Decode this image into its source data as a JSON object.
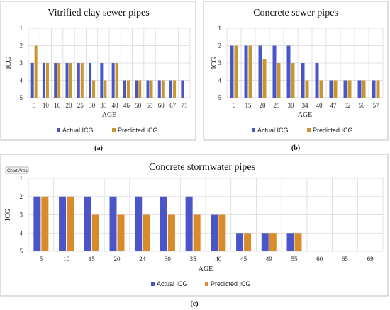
{
  "colors": {
    "actual": "#4a55c8",
    "predicted": "#c9962e",
    "predicted_c": "#d98a2b",
    "grid": "#d9d9d9",
    "frame": "#bfbfbf"
  },
  "chart_area_tooltip": "Chart Area",
  "chart_data": [
    {
      "type": "bar",
      "panel_label": "(a)",
      "title": "Vitrified clay sewer pipes",
      "xlabel": "AGE",
      "ylabel": "ICG",
      "y_ticks": [
        "1",
        "2",
        "3",
        "4",
        "5"
      ],
      "ylim": [
        1,
        5
      ],
      "y_inverted": true,
      "bar_base": 5,
      "categories": [
        "5",
        "10",
        "16",
        "20",
        "25",
        "30",
        "35",
        "40",
        "46",
        "50",
        "55",
        "60",
        "67",
        "71"
      ],
      "series": [
        {
          "name": "Actual ICG",
          "values": [
            3,
            3,
            3,
            3,
            3,
            3,
            3,
            3,
            4,
            4,
            4,
            4,
            4,
            4
          ]
        },
        {
          "name": "Predicted ICG",
          "values": [
            2,
            3,
            3,
            3,
            3,
            4,
            4,
            3,
            4,
            4,
            4,
            4,
            4,
            null
          ]
        }
      ],
      "legend_position": "bottom",
      "grid": true
    },
    {
      "type": "bar",
      "panel_label": "(b)",
      "title": "Concrete sewer pipes",
      "xlabel": "AGE",
      "ylabel": "ICG",
      "y_ticks": [
        "1",
        "2",
        "3",
        "4",
        "5"
      ],
      "ylim": [
        1,
        5
      ],
      "y_inverted": true,
      "bar_base": 5,
      "categories": [
        "6",
        "15",
        "20",
        "25",
        "30",
        "34",
        "40",
        "47",
        "52",
        "56",
        "57"
      ],
      "series": [
        {
          "name": "Actual ICG",
          "values": [
            2,
            2,
            2,
            2,
            2,
            3,
            3,
            4,
            4,
            4,
            4
          ]
        },
        {
          "name": "Predicted ICG",
          "values": [
            2,
            2,
            2.8,
            3,
            3,
            4,
            4,
            4,
            4,
            4,
            4
          ]
        }
      ],
      "legend_position": "bottom",
      "grid": true
    },
    {
      "type": "bar",
      "panel_label": "(c)",
      "title": "Concrete stormwater pipes",
      "xlabel": "AGE",
      "ylabel": "ICG",
      "y_ticks": [
        "1",
        "2",
        "3",
        "4",
        "5"
      ],
      "ylim": [
        1,
        5
      ],
      "y_inverted": true,
      "bar_base": 5,
      "categories": [
        "5",
        "10",
        "15",
        "20",
        "24",
        "30",
        "35",
        "40",
        "45",
        "49",
        "55",
        "60",
        "65",
        "69"
      ],
      "series": [
        {
          "name": "Actual ICG",
          "values": [
            2,
            2,
            2,
            2,
            2,
            2,
            2,
            3,
            4,
            4,
            4,
            null,
            null,
            null
          ]
        },
        {
          "name": "Predicted ICG",
          "values": [
            2,
            2,
            3,
            3,
            3,
            3,
            3,
            3,
            4,
            4,
            4,
            null,
            null,
            null
          ]
        }
      ],
      "legend_position": "bottom",
      "grid": true
    }
  ]
}
